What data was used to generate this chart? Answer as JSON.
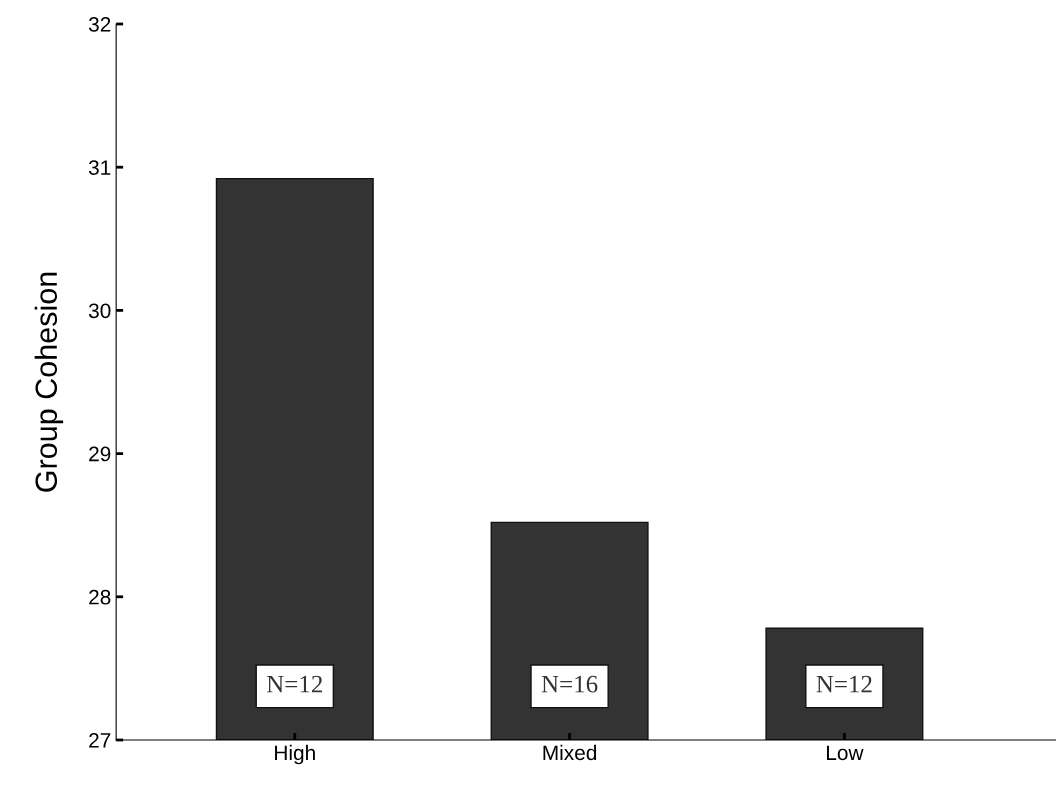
{
  "chart_data": {
    "type": "bar",
    "ylabel": "Group Cohesion",
    "categories": [
      "High",
      "Mixed",
      "Low"
    ],
    "values": [
      30.92,
      28.52,
      27.78
    ],
    "color": "#333333",
    "ylim": [
      27,
      32
    ],
    "yticks": [
      27,
      28,
      29,
      30,
      31,
      32
    ],
    "grid": false,
    "annotations": [
      "N=12",
      "N=16",
      "N=12"
    ]
  }
}
